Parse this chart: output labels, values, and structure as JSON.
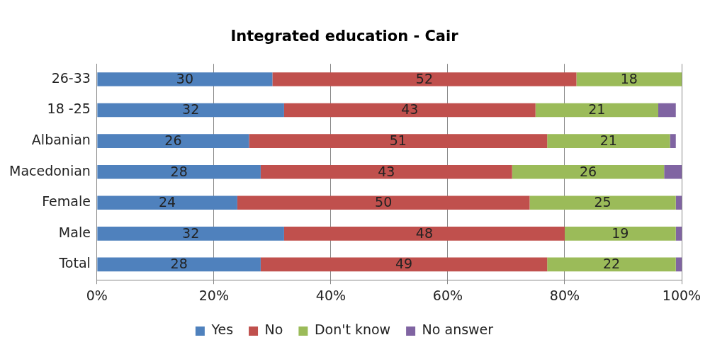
{
  "chart_data": {
    "type": "bar",
    "orientation": "horizontal",
    "stacked": true,
    "title": "Integrated education - Cair",
    "categories": [
      "26-33",
      "18 -25",
      "Albanian",
      "Macedonian",
      "Female",
      "Male",
      "Total"
    ],
    "series": [
      {
        "name": "Yes",
        "color": "#4f81bd",
        "values": [
          30,
          32,
          26,
          28,
          24,
          32,
          28
        ],
        "value_labels": [
          "30",
          "32",
          "26",
          "28",
          "24",
          "32",
          "28"
        ]
      },
      {
        "name": "No",
        "color": "#c0504d",
        "values": [
          52,
          43,
          51,
          43,
          50,
          48,
          49
        ],
        "value_labels": [
          "52",
          "43",
          "51",
          "43",
          "50",
          "48",
          "49"
        ]
      },
      {
        "name": "Don't know",
        "color": "#9bbb59",
        "values": [
          18,
          21,
          21,
          26,
          25,
          19,
          22
        ],
        "value_labels": [
          "18",
          "21",
          "21",
          "26",
          "25",
          "19",
          "22"
        ]
      },
      {
        "name": "No answer",
        "color": "#8064a2",
        "values": [
          0,
          3,
          1,
          3,
          1,
          1,
          1
        ]
      }
    ],
    "xlim": [
      0,
      100
    ],
    "xticks": [
      {
        "value": 0,
        "label": "0%"
      },
      {
        "value": 20,
        "label": "20%"
      },
      {
        "value": 40,
        "label": "40%"
      },
      {
        "value": 60,
        "label": "60%"
      },
      {
        "value": 80,
        "label": "80%"
      },
      {
        "value": 100,
        "label": "100%"
      }
    ],
    "grid": "x",
    "legend": "bottom"
  }
}
